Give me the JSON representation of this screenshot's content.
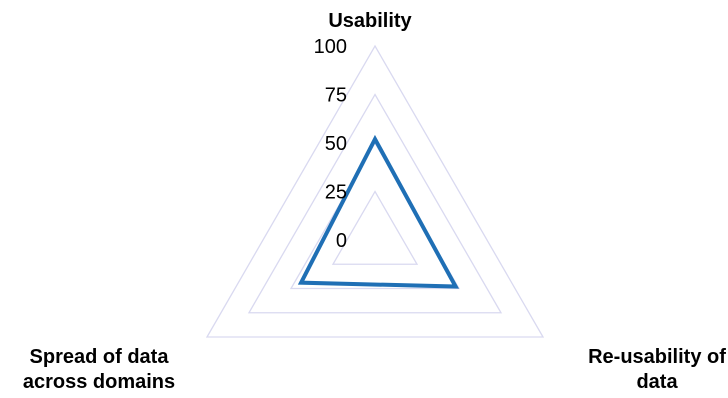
{
  "chart_data": {
    "type": "radar",
    "categories": [
      "Usability",
      "Re-usability of data",
      "Spread of data across domains"
    ],
    "category_lines": [
      [
        "Usability"
      ],
      [
        "Re-usability of",
        "data"
      ],
      [
        "Spread of data",
        "across domains"
      ]
    ],
    "rlim": [
      0,
      100
    ],
    "ticks": [
      0,
      25,
      50,
      75,
      100
    ],
    "tick_labels": [
      "0",
      "25",
      "50",
      "75",
      "100"
    ],
    "series": [
      {
        "values": [
          52,
          48,
          44
        ],
        "color": "#1f6fb5"
      }
    ],
    "grid_color": "#d9d9f0",
    "grid": true,
    "legend": "none"
  }
}
